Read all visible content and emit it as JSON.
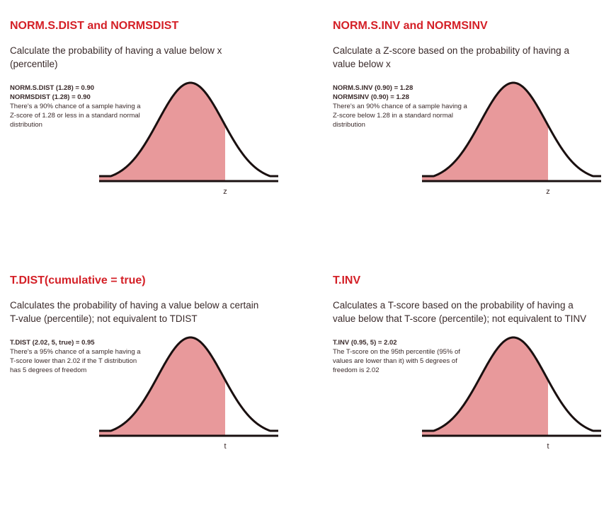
{
  "colors": {
    "title": "#d42027",
    "fill": "#e8999b",
    "curve": "#1a1010",
    "text": "#3a2a2a"
  },
  "panels": [
    {
      "title": "NORM.S.DIST and NORMSDIST",
      "description": "Calculate the probability of having a value below x (percentile)",
      "formulas": [
        "NORM.S.DIST (1.28) = 0.90",
        "NORMSDIST (1.28) = 0.90"
      ],
      "note": "There's a 90% chance of a sample having a Z-score of 1.28 or less in a standard normal distribution",
      "axis_label": "z",
      "cutoff": 1.28
    },
    {
      "title": "NORM.S.INV and NORMSINV",
      "description": "Calculate a Z-score based on the probability of having a value below x",
      "formulas": [
        "NORM.S.INV (0.90) = 1.28",
        "NORMSINV (0.90) = 1.28"
      ],
      "note": "There's an 90% chance of a sample having a Z-score below 1.28 in a standard normal distribution",
      "axis_label": "z",
      "cutoff": 1.28
    },
    {
      "title": "T.DIST(cumulative = true)",
      "description": "Calculates the probability of having a value below a certain T-value (percentile); not equivalent to TDIST",
      "formulas": [
        "T.DIST (2.02, 5, true) = 0.95"
      ],
      "note": "There's a 95% chance of a sample having a T-score lower than 2.02 if the T distribution has 5 degrees of freedom",
      "axis_label": "t",
      "cutoff": 2.02
    },
    {
      "title": "T.INV",
      "description": "Calculates a T-score based on the probability of having a value below that T-score (percentile); not equivalent to TINV",
      "formulas": [
        "T.INV (0.95, 5) = 2.02"
      ],
      "note": "The T-score on the 95th percentile (95% of values are lower than it) with 5 degrees of freedom is 2.02",
      "axis_label": "t",
      "cutoff": 2.02
    }
  ]
}
